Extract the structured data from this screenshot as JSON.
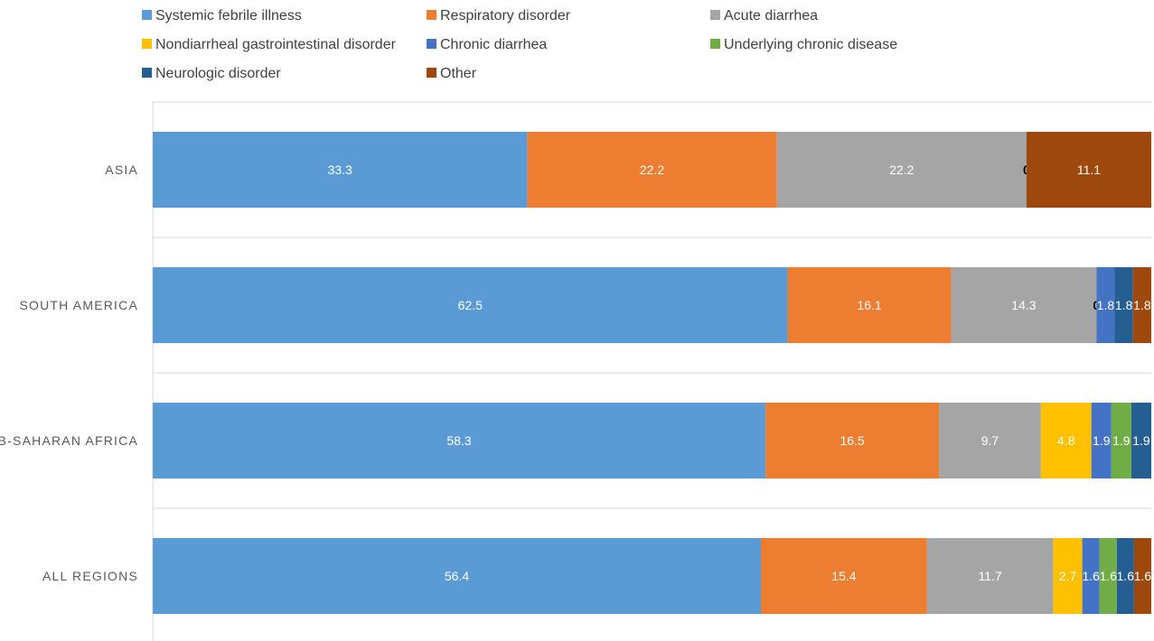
{
  "chart_data": {
    "type": "bar",
    "orientation": "horizontal",
    "stacked": "percent",
    "title": "",
    "xlabel": "",
    "ylabel": "",
    "grid": true,
    "legend_position": "top",
    "categories": [
      "ASIA",
      "SOUTH AMERICA",
      "SUB-SAHARAN AFRICA",
      "ALL REGIONS"
    ],
    "series": [
      {
        "name": "Systemic febrile illness",
        "color": "#5B9BD5",
        "label_color": "#ffffff",
        "values": [
          33.3,
          62.5,
          58.3,
          56.4
        ]
      },
      {
        "name": "Respiratory disorder",
        "color": "#ED7D31",
        "label_color": "#ffffff",
        "values": [
          22.2,
          16.1,
          16.5,
          15.4
        ]
      },
      {
        "name": "Acute diarrhea",
        "color": "#A5A5A5",
        "label_color": "#ffffff",
        "values": [
          22.2,
          14.3,
          9.7,
          11.7
        ]
      },
      {
        "name": "Nondiarrheal gastrointestinal disorder",
        "color": "#FFC000",
        "label_color": "#ffffff",
        "values": [
          0,
          0,
          4.8,
          2.7
        ]
      },
      {
        "name": "Chronic diarrhea",
        "color": "#4472C4",
        "label_color": "#ffffff",
        "values": [
          0,
          1.8,
          1.9,
          1.6
        ]
      },
      {
        "name": "Underlying chronic disease",
        "color": "#70AD47",
        "label_color": "#ffffff",
        "values": [
          0,
          0,
          1.9,
          1.6
        ]
      },
      {
        "name": "Neurologic disorder",
        "color": "#255E91",
        "label_color": "#ffffff",
        "values": [
          0,
          1.8,
          1.9,
          1.6
        ]
      },
      {
        "name": "Other",
        "color": "#9E480E",
        "label_color": "#ffffff",
        "values": [
          11.1,
          1.8,
          0,
          1.6
        ]
      }
    ],
    "data_labels": [
      [
        "33.3",
        "22.2",
        "22.2",
        "0",
        "",
        "",
        "",
        "11.1"
      ],
      [
        "62.5",
        "16.1",
        "14.3",
        "0",
        "1.8",
        "",
        "1.8",
        "1.8"
      ],
      [
        "58.3",
        "16.5",
        "9.7",
        "4.8",
        "1.9",
        "1.9",
        "1.9",
        ""
      ],
      [
        "56.4",
        "15.4",
        "11.7",
        "2.7",
        "1.6",
        "1.6",
        "1.6",
        "1.6"
      ]
    ],
    "zero_label_color": "#000000"
  }
}
